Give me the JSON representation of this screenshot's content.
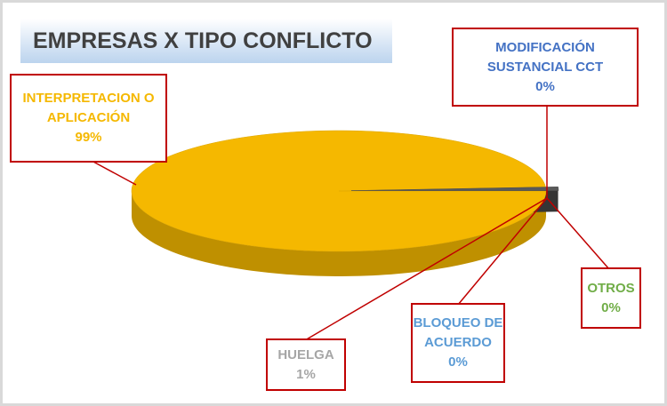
{
  "chart_data": {
    "type": "pie",
    "title": "EMPRESAS X TIPO CONFLICTO",
    "categories": [
      "INTERPRETACION O APLICACIÓN",
      "HUELGA",
      "BLOQUEO DE ACUERDO",
      "OTROS",
      "MODIFICACIÓN SUSTANCIAL CCT"
    ],
    "values": [
      99,
      1,
      0,
      0,
      0
    ],
    "value_labels": [
      "99%",
      "1%",
      "0%",
      "0%",
      "0%"
    ],
    "colors": [
      "#f5b800",
      "#595959",
      "#5b9bd5",
      "#70ad47",
      "#4472c4"
    ],
    "label_colors": [
      "#f5b800",
      "#a6a6a6",
      "#5b9bd5",
      "#70ad47",
      "#4472c4"
    ]
  }
}
